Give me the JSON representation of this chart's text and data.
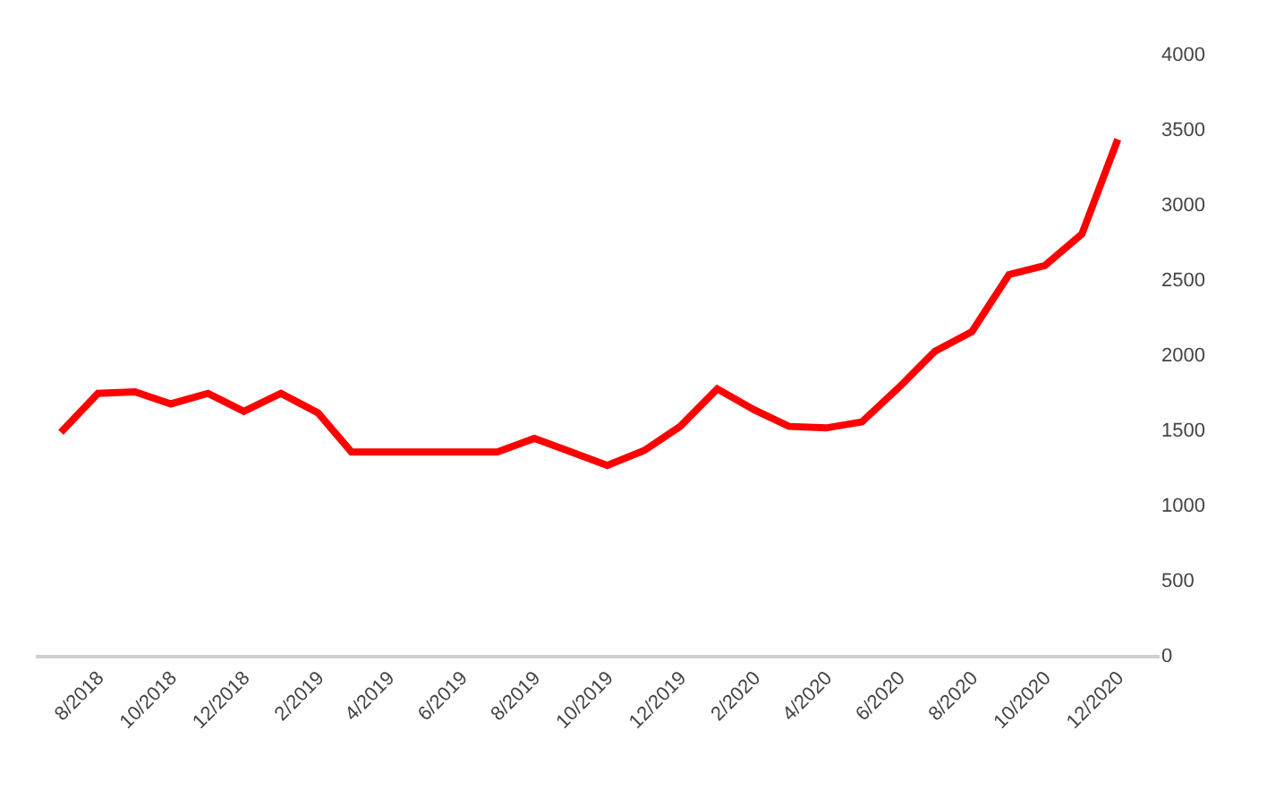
{
  "chart_data": {
    "type": "line",
    "x": [
      "2018-07",
      "2018-08",
      "2018-09",
      "2018-10",
      "2018-11",
      "2018-12",
      "2019-01",
      "2019-02",
      "2019-03",
      "2019-04",
      "2019-05",
      "2019-06",
      "2019-07",
      "2019-08",
      "2019-09",
      "2019-10",
      "2019-11",
      "2019-12",
      "2020-01",
      "2020-02",
      "2020-03",
      "2020-04",
      "2020-05",
      "2020-06",
      "2020-07",
      "2020-08",
      "2020-09",
      "2020-10",
      "2020-11",
      "2020-12"
    ],
    "series": [
      {
        "color": "#ff0000",
        "values": [
          1480,
          1740,
          1750,
          1670,
          1740,
          1620,
          1740,
          1610,
          1350,
          1350,
          1350,
          1350,
          1350,
          1440,
          1350,
          1260,
          1360,
          1520,
          1770,
          1630,
          1520,
          1510,
          1550,
          1780,
          2020,
          2150,
          2530,
          2590,
          2800,
          3430
        ]
      }
    ],
    "xlim": [
      "2018-06-10",
      "2021-01-05"
    ],
    "xticks": [
      {
        "value": "2018-08",
        "label": "8/2018"
      },
      {
        "value": "2018-10",
        "label": "10/2018"
      },
      {
        "value": "2018-12",
        "label": "12/2018"
      },
      {
        "value": "2019-02",
        "label": "2/2019"
      },
      {
        "value": "2019-04",
        "label": "4/2019"
      },
      {
        "value": "2019-06",
        "label": "6/2019"
      },
      {
        "value": "2019-08",
        "label": "8/2019"
      },
      {
        "value": "2019-10",
        "label": "10/2019"
      },
      {
        "value": "2019-12",
        "label": "12/2019"
      },
      {
        "value": "2020-02",
        "label": "2/2020"
      },
      {
        "value": "2020-04",
        "label": "4/2020"
      },
      {
        "value": "2020-06",
        "label": "6/2020"
      },
      {
        "value": "2020-08",
        "label": "8/2020"
      },
      {
        "value": "2020-10",
        "label": "10/2020"
      },
      {
        "value": "2020-12",
        "label": "12/2020"
      }
    ],
    "ylim": [
      0,
      4000
    ],
    "yticks": [
      0,
      500,
      1000,
      1500,
      2000,
      2500,
      3000,
      3500,
      4000
    ],
    "marker": "none",
    "line_style": "solid"
  }
}
